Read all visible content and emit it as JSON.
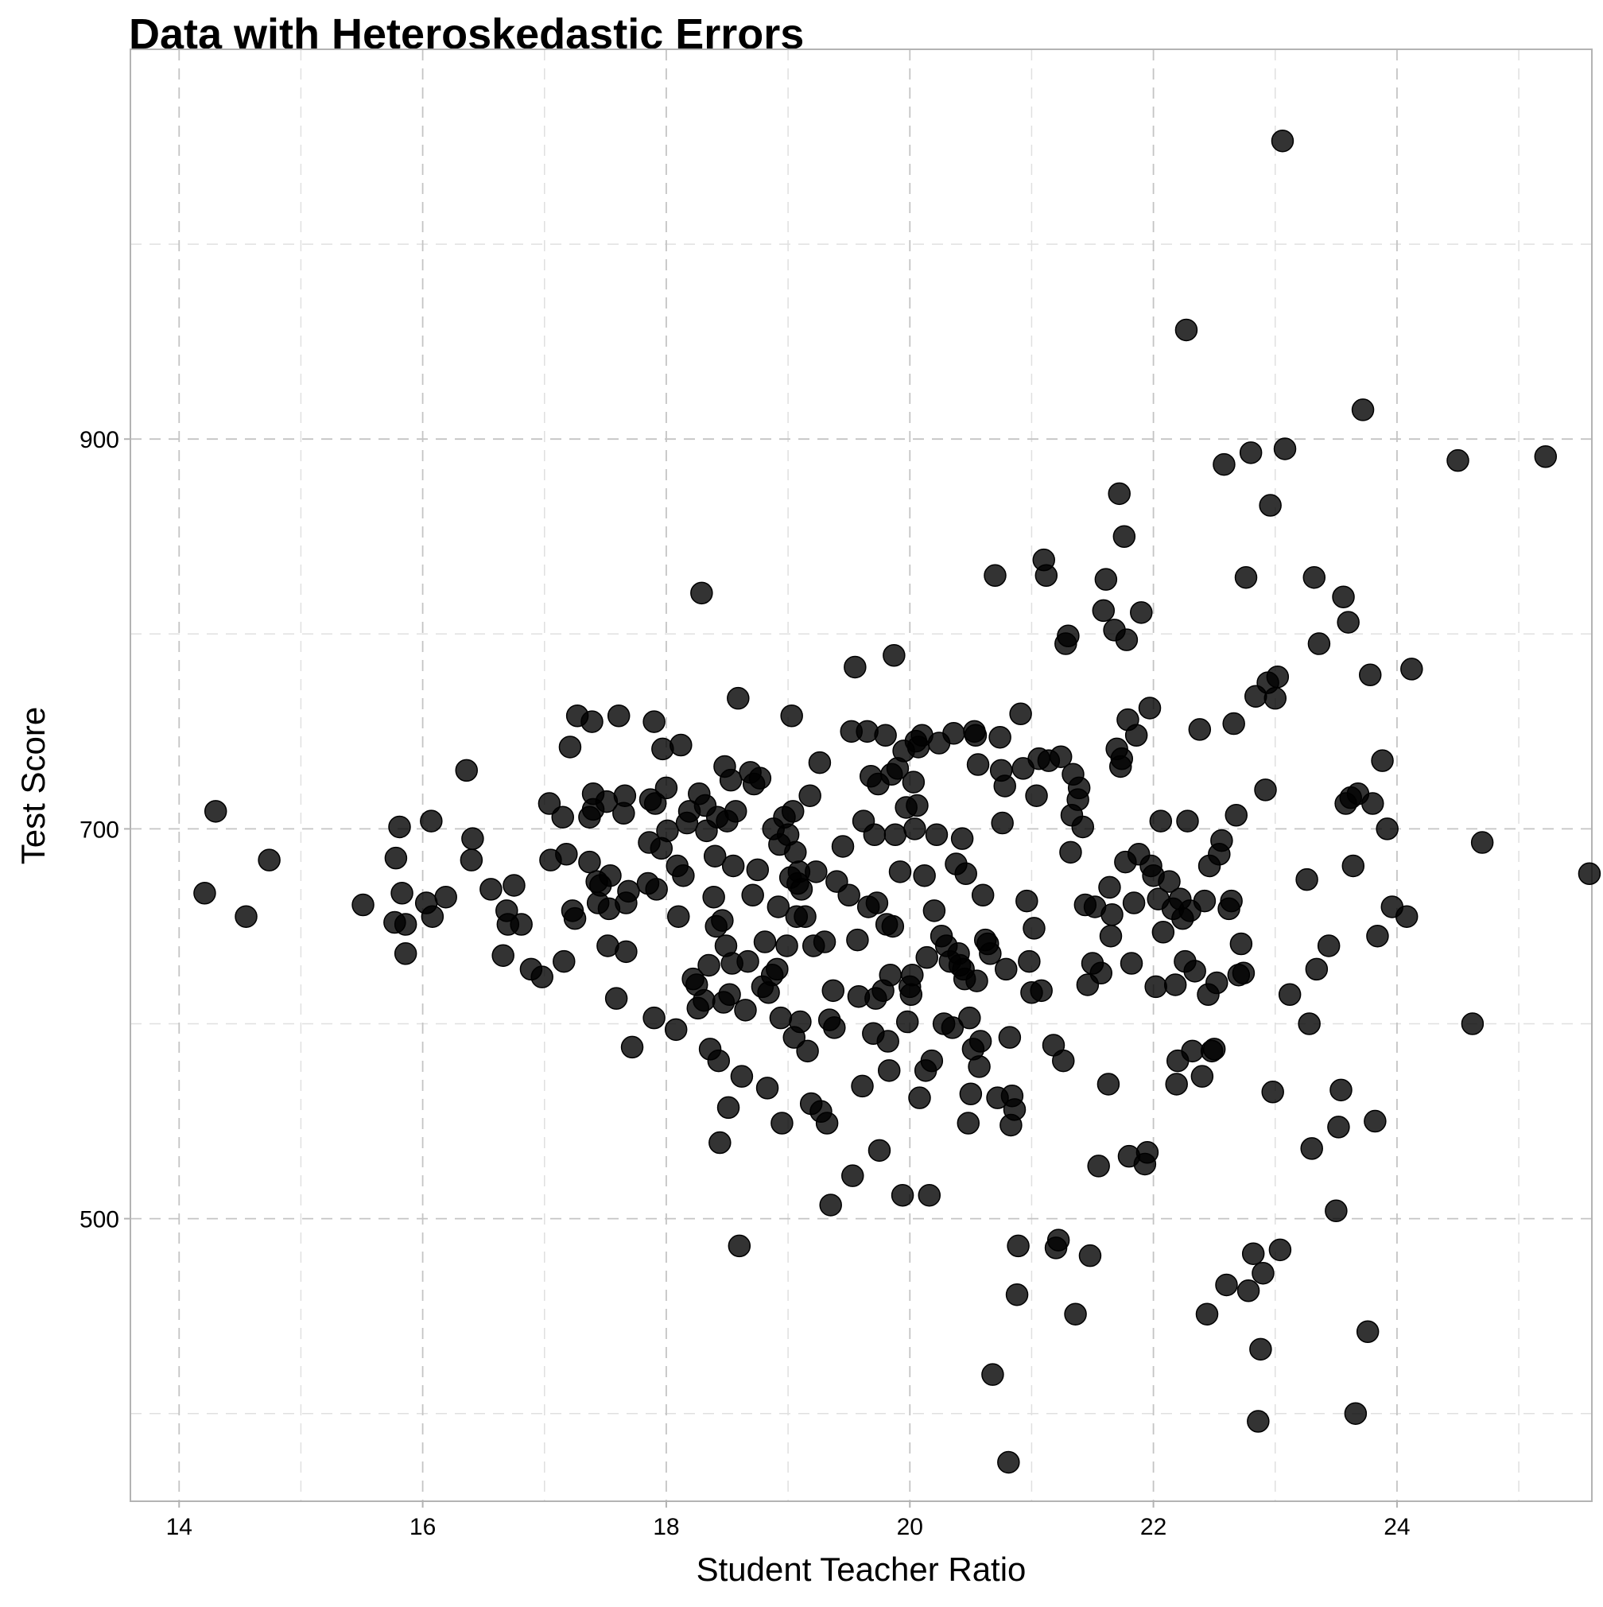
{
  "chart_data": {
    "type": "scatter",
    "title": "Data with Heteroskedastic Errors",
    "xlabel": "Student Teacher Ratio",
    "ylabel": "Test Score",
    "xlim": [
      13.6,
      25.6
    ],
    "ylim": [
      355,
      1100
    ],
    "x_ticks": [
      14,
      16,
      18,
      20,
      22,
      24
    ],
    "x_minor_ticks": [
      15,
      17,
      19,
      21,
      23,
      25
    ],
    "y_ticks": [
      500,
      700,
      900
    ],
    "y_minor_ticks": [
      400,
      600,
      800,
      1000
    ],
    "grid": true,
    "grid_style": "dashed",
    "marker_color": "#000000",
    "marker_opacity": 0.8,
    "points": [
      [
        14.21,
        667
      ],
      [
        14.3,
        709
      ],
      [
        14.55,
        655
      ],
      [
        14.74,
        684
      ],
      [
        15.51,
        661
      ],
      [
        15.78,
        685
      ],
      [
        15.81,
        701
      ],
      [
        15.83,
        667
      ],
      [
        15.77,
        652
      ],
      [
        15.86,
        651
      ],
      [
        15.86,
        636
      ],
      [
        16.03,
        662
      ],
      [
        16.07,
        704
      ],
      [
        16.08,
        655
      ],
      [
        16.19,
        665
      ],
      [
        16.36,
        730
      ],
      [
        16.4,
        684
      ],
      [
        16.41,
        695
      ],
      [
        16.56,
        669
      ],
      [
        16.66,
        635
      ],
      [
        16.69,
        658
      ],
      [
        16.7,
        651
      ],
      [
        16.75,
        671
      ],
      [
        16.81,
        651
      ],
      [
        16.89,
        628
      ],
      [
        16.98,
        624
      ],
      [
        17.04,
        713
      ],
      [
        17.05,
        684
      ],
      [
        17.15,
        706
      ],
      [
        17.16,
        632
      ],
      [
        17.18,
        687
      ],
      [
        17.21,
        742
      ],
      [
        17.23,
        658
      ],
      [
        17.25,
        654
      ],
      [
        17.27,
        758
      ],
      [
        17.37,
        706
      ],
      [
        17.37,
        683
      ],
      [
        17.39,
        755
      ],
      [
        17.4,
        718
      ],
      [
        17.4,
        710
      ],
      [
        17.43,
        673
      ],
      [
        17.44,
        662
      ],
      [
        17.46,
        671
      ],
      [
        17.51,
        714
      ],
      [
        17.52,
        640
      ],
      [
        17.53,
        659
      ],
      [
        17.54,
        676
      ],
      [
        17.59,
        613
      ],
      [
        17.61,
        758
      ],
      [
        17.65,
        708
      ],
      [
        17.66,
        717
      ],
      [
        17.67,
        637
      ],
      [
        17.67,
        662
      ],
      [
        17.69,
        668
      ],
      [
        17.72,
        588
      ],
      [
        17.85,
        672
      ],
      [
        17.86,
        693
      ],
      [
        17.87,
        715
      ],
      [
        17.9,
        603
      ],
      [
        17.9,
        755
      ],
      [
        17.91,
        713
      ],
      [
        17.92,
        669
      ],
      [
        17.96,
        690
      ],
      [
        17.97,
        741
      ],
      [
        18.0,
        721
      ],
      [
        18.01,
        699
      ],
      [
        18.08,
        597
      ],
      [
        18.09,
        681
      ],
      [
        18.1,
        655
      ],
      [
        18.12,
        743
      ],
      [
        18.14,
        676
      ],
      [
        18.17,
        703
      ],
      [
        18.19,
        709
      ],
      [
        18.22,
        623
      ],
      [
        18.25,
        620
      ],
      [
        18.26,
        608
      ],
      [
        18.27,
        718
      ],
      [
        18.29,
        821
      ],
      [
        18.31,
        612
      ],
      [
        18.32,
        712
      ],
      [
        18.33,
        699
      ],
      [
        18.35,
        630
      ],
      [
        18.36,
        587
      ],
      [
        18.39,
        665
      ],
      [
        18.4,
        686
      ],
      [
        18.41,
        650
      ],
      [
        18.42,
        706
      ],
      [
        18.43,
        581
      ],
      [
        18.44,
        539
      ],
      [
        18.46,
        653
      ],
      [
        18.47,
        611
      ],
      [
        18.48,
        732
      ],
      [
        18.49,
        640
      ],
      [
        18.5,
        704
      ],
      [
        18.51,
        557
      ],
      [
        18.52,
        615
      ],
      [
        18.53,
        725
      ],
      [
        18.54,
        631
      ],
      [
        18.55,
        681
      ],
      [
        18.57,
        709
      ],
      [
        18.59,
        767
      ],
      [
        18.6,
        486
      ],
      [
        18.62,
        573
      ],
      [
        18.65,
        607
      ],
      [
        18.67,
        632
      ],
      [
        18.69,
        729
      ],
      [
        18.71,
        666
      ],
      [
        18.72,
        723
      ],
      [
        18.75,
        679
      ],
      [
        18.77,
        726
      ],
      [
        18.79,
        619
      ],
      [
        18.81,
        642
      ],
      [
        18.83,
        567
      ],
      [
        18.84,
        616
      ],
      [
        18.87,
        625
      ],
      [
        18.88,
        700
      ],
      [
        18.91,
        628
      ],
      [
        18.92,
        660
      ],
      [
        18.93,
        692
      ],
      [
        18.94,
        603
      ],
      [
        18.95,
        549
      ],
      [
        18.97,
        706
      ],
      [
        18.99,
        640
      ],
      [
        19.0,
        697
      ],
      [
        19.02,
        675
      ],
      [
        19.03,
        758
      ],
      [
        19.04,
        709
      ],
      [
        19.05,
        593
      ],
      [
        19.06,
        688
      ],
      [
        19.07,
        655
      ],
      [
        19.08,
        672
      ],
      [
        19.09,
        678
      ],
      [
        19.1,
        601
      ],
      [
        19.11,
        669
      ],
      [
        19.14,
        655
      ],
      [
        19.16,
        586
      ],
      [
        19.18,
        717
      ],
      [
        19.19,
        559
      ],
      [
        19.21,
        640
      ],
      [
        19.23,
        678
      ],
      [
        19.26,
        734
      ],
      [
        19.27,
        555
      ],
      [
        19.3,
        642
      ],
      [
        19.32,
        549
      ],
      [
        19.34,
        602
      ],
      [
        19.35,
        507
      ],
      [
        19.37,
        617
      ],
      [
        19.38,
        598
      ],
      [
        19.4,
        673
      ],
      [
        19.45,
        691
      ],
      [
        19.5,
        666
      ],
      [
        19.52,
        750
      ],
      [
        19.53,
        522
      ],
      [
        19.55,
        783
      ],
      [
        19.57,
        643
      ],
      [
        19.58,
        614
      ],
      [
        19.61,
        568
      ],
      [
        19.62,
        704
      ],
      [
        19.65,
        750
      ],
      [
        19.66,
        660
      ],
      [
        19.68,
        727
      ],
      [
        19.7,
        595
      ],
      [
        19.71,
        697
      ],
      [
        19.72,
        613
      ],
      [
        19.73,
        662
      ],
      [
        19.74,
        723
      ],
      [
        19.75,
        535
      ],
      [
        19.78,
        617
      ],
      [
        19.8,
        748
      ],
      [
        19.81,
        651
      ],
      [
        19.82,
        591
      ],
      [
        19.83,
        576
      ],
      [
        19.84,
        625
      ],
      [
        19.85,
        728
      ],
      [
        19.86,
        650
      ],
      [
        19.87,
        789
      ],
      [
        19.88,
        697
      ],
      [
        19.9,
        731
      ],
      [
        19.92,
        678
      ],
      [
        19.94,
        512
      ],
      [
        19.95,
        740
      ],
      [
        19.97,
        711
      ],
      [
        19.98,
        601
      ],
      [
        20.0,
        619
      ],
      [
        20.01,
        615
      ],
      [
        20.02,
        625
      ],
      [
        20.03,
        724
      ],
      [
        20.04,
        700
      ],
      [
        20.05,
        745
      ],
      [
        20.06,
        712
      ],
      [
        20.07,
        742
      ],
      [
        20.08,
        562
      ],
      [
        20.1,
        748
      ],
      [
        20.12,
        676
      ],
      [
        20.13,
        576
      ],
      [
        20.14,
        634
      ],
      [
        20.16,
        512
      ],
      [
        20.18,
        581
      ],
      [
        20.2,
        658
      ],
      [
        20.22,
        697
      ],
      [
        20.24,
        744
      ],
      [
        20.26,
        645
      ],
      [
        20.28,
        600
      ],
      [
        20.3,
        640
      ],
      [
        20.33,
        632
      ],
      [
        20.35,
        598
      ],
      [
        20.36,
        749
      ],
      [
        20.38,
        682
      ],
      [
        20.4,
        636
      ],
      [
        20.41,
        630
      ],
      [
        20.43,
        695
      ],
      [
        20.44,
        628
      ],
      [
        20.45,
        623
      ],
      [
        20.46,
        677
      ],
      [
        20.48,
        549
      ],
      [
        20.49,
        603
      ],
      [
        20.5,
        564
      ],
      [
        20.52,
        587
      ],
      [
        20.53,
        750
      ],
      [
        20.54,
        748
      ],
      [
        20.55,
        622
      ],
      [
        20.56,
        733
      ],
      [
        20.57,
        578
      ],
      [
        20.58,
        591
      ],
      [
        20.6,
        666
      ],
      [
        20.62,
        643
      ],
      [
        20.64,
        641
      ],
      [
        20.66,
        636
      ],
      [
        20.68,
        420
      ],
      [
        20.7,
        830
      ],
      [
        20.72,
        562
      ],
      [
        20.74,
        747
      ],
      [
        20.75,
        730
      ],
      [
        20.76,
        703
      ],
      [
        20.78,
        722
      ],
      [
        20.79,
        628
      ],
      [
        20.81,
        375
      ],
      [
        20.82,
        593
      ],
      [
        20.83,
        548
      ],
      [
        20.84,
        563
      ],
      [
        20.86,
        556
      ],
      [
        20.88,
        461
      ],
      [
        20.89,
        486
      ],
      [
        20.91,
        759
      ],
      [
        20.93,
        731
      ],
      [
        20.96,
        663
      ],
      [
        20.98,
        632
      ],
      [
        21.0,
        616
      ],
      [
        21.02,
        649
      ],
      [
        21.04,
        717
      ],
      [
        21.06,
        736
      ],
      [
        21.08,
        617
      ],
      [
        21.1,
        838
      ],
      [
        21.12,
        830
      ],
      [
        21.14,
        735
      ],
      [
        21.18,
        589
      ],
      [
        21.2,
        485
      ],
      [
        21.22,
        489
      ],
      [
        21.24,
        737
      ],
      [
        21.26,
        581
      ],
      [
        21.28,
        795
      ],
      [
        21.3,
        799
      ],
      [
        21.32,
        688
      ],
      [
        21.33,
        707
      ],
      [
        21.34,
        728
      ],
      [
        21.36,
        451
      ],
      [
        21.38,
        715
      ],
      [
        21.39,
        721
      ],
      [
        21.42,
        701
      ],
      [
        21.44,
        661
      ],
      [
        21.46,
        620
      ],
      [
        21.48,
        481
      ],
      [
        21.5,
        631
      ],
      [
        21.52,
        660
      ],
      [
        21.55,
        527
      ],
      [
        21.57,
        626
      ],
      [
        21.59,
        812
      ],
      [
        21.61,
        828
      ],
      [
        21.63,
        569
      ],
      [
        21.64,
        670
      ],
      [
        21.65,
        645
      ],
      [
        21.66,
        656
      ],
      [
        21.68,
        802
      ],
      [
        21.7,
        741
      ],
      [
        21.72,
        872
      ],
      [
        21.73,
        732
      ],
      [
        21.74,
        736
      ],
      [
        21.76,
        850
      ],
      [
        21.77,
        683
      ],
      [
        21.78,
        797
      ],
      [
        21.79,
        756
      ],
      [
        21.8,
        532
      ],
      [
        21.82,
        631
      ],
      [
        21.84,
        662
      ],
      [
        21.86,
        748
      ],
      [
        21.88,
        687
      ],
      [
        21.9,
        811
      ],
      [
        21.93,
        528
      ],
      [
        21.95,
        534
      ],
      [
        21.97,
        762
      ],
      [
        21.98,
        681
      ],
      [
        22.0,
        676
      ],
      [
        22.02,
        619
      ],
      [
        22.04,
        664
      ],
      [
        22.06,
        704
      ],
      [
        22.08,
        647
      ],
      [
        22.13,
        673
      ],
      [
        22.16,
        659
      ],
      [
        22.18,
        620
      ],
      [
        22.19,
        569
      ],
      [
        22.2,
        581
      ],
      [
        22.22,
        664
      ],
      [
        22.24,
        654
      ],
      [
        22.26,
        632
      ],
      [
        22.27,
        956
      ],
      [
        22.28,
        704
      ],
      [
        22.3,
        658
      ],
      [
        22.32,
        586
      ],
      [
        22.34,
        627
      ],
      [
        22.38,
        751
      ],
      [
        22.4,
        573
      ],
      [
        22.42,
        663
      ],
      [
        22.44,
        451
      ],
      [
        22.45,
        615
      ],
      [
        22.46,
        681
      ],
      [
        22.48,
        586
      ],
      [
        22.5,
        587
      ],
      [
        22.52,
        621
      ],
      [
        22.54,
        687
      ],
      [
        22.56,
        694
      ],
      [
        22.58,
        887
      ],
      [
        22.6,
        466
      ],
      [
        22.62,
        659
      ],
      [
        22.64,
        663
      ],
      [
        22.66,
        754
      ],
      [
        22.68,
        707
      ],
      [
        22.7,
        625
      ],
      [
        22.72,
        641
      ],
      [
        22.74,
        626
      ],
      [
        22.76,
        829
      ],
      [
        22.78,
        463
      ],
      [
        22.8,
        893
      ],
      [
        22.82,
        482
      ],
      [
        22.84,
        768
      ],
      [
        22.86,
        396
      ],
      [
        22.88,
        433
      ],
      [
        22.9,
        472
      ],
      [
        22.92,
        720
      ],
      [
        22.94,
        775
      ],
      [
        22.96,
        866
      ],
      [
        22.98,
        565
      ],
      [
        23.0,
        767
      ],
      [
        23.02,
        778
      ],
      [
        23.04,
        484
      ],
      [
        23.06,
        1053
      ],
      [
        23.08,
        895
      ],
      [
        23.12,
        615
      ],
      [
        23.26,
        674
      ],
      [
        23.28,
        600
      ],
      [
        23.3,
        536
      ],
      [
        23.32,
        829
      ],
      [
        23.34,
        628
      ],
      [
        23.36,
        795
      ],
      [
        23.44,
        640
      ],
      [
        23.5,
        504
      ],
      [
        23.52,
        547
      ],
      [
        23.54,
        566
      ],
      [
        23.56,
        819
      ],
      [
        23.58,
        713
      ],
      [
        23.6,
        806
      ],
      [
        23.62,
        716
      ],
      [
        23.64,
        681
      ],
      [
        23.66,
        400
      ],
      [
        23.68,
        718
      ],
      [
        23.72,
        915
      ],
      [
        23.76,
        442
      ],
      [
        23.78,
        779
      ],
      [
        23.8,
        713
      ],
      [
        23.82,
        550
      ],
      [
        23.84,
        645
      ],
      [
        23.88,
        735
      ],
      [
        23.92,
        700
      ],
      [
        23.96,
        660
      ],
      [
        24.08,
        655
      ],
      [
        24.12,
        782
      ],
      [
        24.5,
        889
      ],
      [
        24.62,
        600
      ],
      [
        24.7,
        693
      ],
      [
        25.22,
        891
      ],
      [
        25.58,
        677
      ]
    ]
  }
}
